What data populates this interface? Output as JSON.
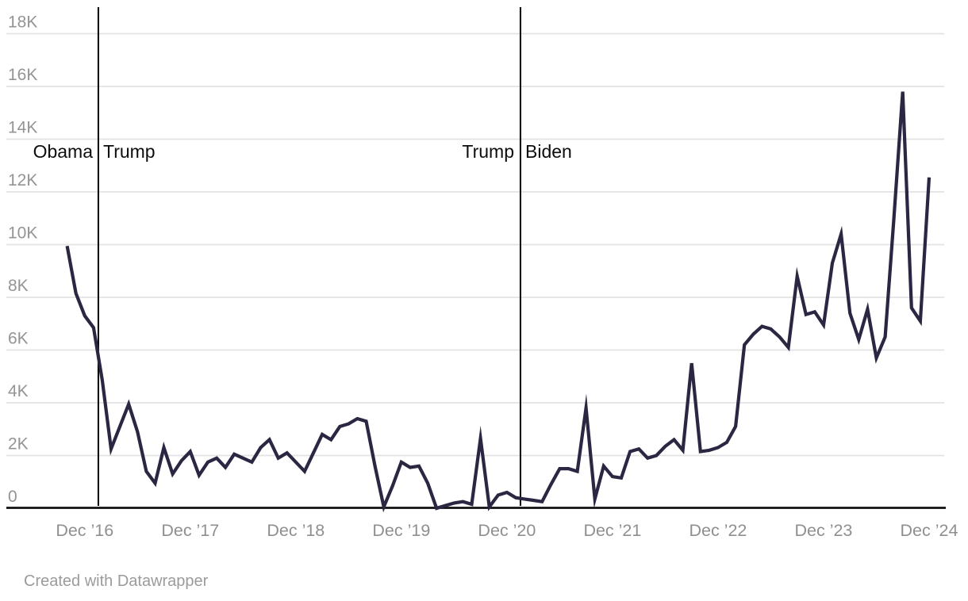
{
  "chart_data": {
    "type": "line",
    "title": "",
    "x_tick_labels": [
      "Dec ’16",
      "Dec ’17",
      "Dec ’18",
      "Dec ’19",
      "Dec ’20",
      "Dec ’21",
      "Dec ’22",
      "Dec ’23",
      "Dec ’24"
    ],
    "y_tick_labels": [
      "0",
      "2K",
      "4K",
      "6K",
      "8K",
      "10K",
      "12K",
      "14K",
      "16K",
      "18K"
    ],
    "ylim_thousands": [
      0,
      18
    ],
    "x_start": "Oct 2016",
    "x_end": "Dec 2024",
    "interval": "monthly",
    "grid": true,
    "legend": "none",
    "line_color": "#2b2642",
    "values_thousands": [
      9.95,
      8.15,
      7.3,
      6.85,
      4.85,
      2.25,
      3.1,
      3.95,
      2.9,
      1.4,
      0.95,
      2.3,
      1.3,
      1.8,
      2.15,
      1.25,
      1.75,
      1.9,
      1.55,
      2.05,
      1.9,
      1.75,
      2.3,
      2.6,
      1.9,
      2.1,
      1.75,
      1.4,
      2.1,
      2.8,
      2.6,
      3.1,
      3.2,
      3.4,
      3.3,
      1.6,
      0.05,
      0.85,
      1.75,
      1.55,
      1.6,
      0.95,
      0.0,
      0.1,
      0.2,
      0.25,
      0.15,
      2.65,
      0.05,
      0.5,
      0.6,
      0.4,
      0.35,
      0.3,
      0.25,
      0.9,
      1.5,
      1.5,
      1.4,
      3.8,
      0.35,
      1.6,
      1.2,
      1.15,
      2.15,
      2.25,
      1.9,
      2.0,
      2.35,
      2.6,
      2.2,
      5.5,
      2.15,
      2.2,
      2.3,
      2.5,
      3.1,
      6.2,
      6.6,
      6.9,
      6.8,
      6.5,
      6.1,
      8.8,
      7.35,
      7.45,
      6.95,
      9.3,
      10.4,
      7.4,
      6.4,
      7.55,
      5.7,
      6.5,
      11.0,
      15.8,
      7.6,
      7.1,
      12.55
    ],
    "annotations": [
      {
        "left_label": "Obama",
        "right_label": "Trump",
        "month_index": 3.55
      },
      {
        "left_label": "Trump",
        "right_label": "Biden",
        "month_index": 51.54
      }
    ]
  },
  "footer": {
    "credit": "Created with Datawrapper"
  }
}
